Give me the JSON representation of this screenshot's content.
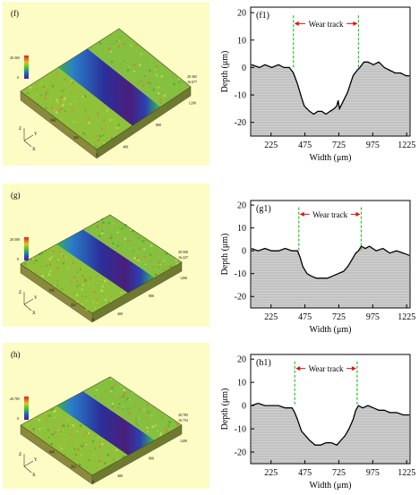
{
  "panels": [
    {
      "label": "(f)",
      "colors": {
        "bg": "#fdfcc4"
      },
      "axis_text": {
        "top_scale": [
          "20.365",
          "0"
        ],
        "right_scale": [
          "20.365",
          "16.677"
        ],
        "x_ticks": [
          "1200",
          "800",
          "400"
        ],
        "y_ticks": [
          "642",
          "321",
          "0"
        ],
        "z_labels": [
          "Z",
          "Y",
          "X"
        ]
      }
    },
    {
      "label": "(g)",
      "colors": {
        "bg": "#fdfcc4"
      },
      "axis_text": {
        "top_scale": [
          "20.500",
          "0"
        ],
        "right_scale": [
          "20.500",
          "16.227"
        ],
        "x_ticks": [
          "1200",
          "800",
          "400"
        ],
        "y_ticks": [
          "642",
          "321",
          "0"
        ],
        "z_labels": [
          "Z",
          "Y",
          "X"
        ]
      }
    },
    {
      "label": "(h)",
      "colors": {
        "bg": "#fdfcc4"
      },
      "axis_text": {
        "top_scale": [
          "20.785",
          "0"
        ],
        "right_scale": [
          "20.785",
          "16.753"
        ],
        "x_ticks": [
          "1200",
          "800",
          "400"
        ],
        "y_ticks": [
          "642",
          "321",
          "0"
        ],
        "z_labels": [
          "Z",
          "Y",
          "X"
        ]
      }
    }
  ],
  "chart_data": [
    {
      "type": "area",
      "panel_label": "(f1)",
      "annotation": "Wear track",
      "xlabel": "Width (μm)",
      "ylabel": "Depth (μm)",
      "xlim": [
        75,
        1250
      ],
      "ylim": [
        -25,
        22
      ],
      "xticks": [
        225,
        475,
        725,
        975,
        1225
      ],
      "yticks": [
        20,
        10,
        0,
        -10,
        -20
      ],
      "track_bounds": [
        390,
        870
      ],
      "x": [
        80,
        140,
        180,
        230,
        280,
        320,
        360,
        390,
        420,
        450,
        470,
        490,
        510,
        540,
        570,
        600,
        630,
        660,
        690,
        710,
        720,
        730,
        760,
        790,
        810,
        830,
        860,
        880,
        910,
        940,
        980,
        1020,
        1060,
        1100,
        1140,
        1180,
        1220,
        1245
      ],
      "y": [
        1,
        0,
        1,
        0,
        1,
        0,
        0,
        -2,
        -6,
        -11,
        -14,
        -15,
        -16,
        -17,
        -16,
        -16,
        -17,
        -16,
        -15,
        -14,
        -12,
        -15,
        -12,
        -9,
        -6,
        -3,
        -1,
        0,
        2,
        2,
        1,
        2,
        0,
        -1,
        -2,
        -2,
        -3,
        -3
      ]
    },
    {
      "type": "area",
      "panel_label": "(g1)",
      "annotation": "Wear track",
      "xlabel": "Width (μm)",
      "ylabel": "Depth (μm)",
      "xlim": [
        75,
        1250
      ],
      "ylim": [
        -25,
        22
      ],
      "xticks": [
        225,
        475,
        725,
        975,
        1225
      ],
      "yticks": [
        20,
        10,
        0,
        -10,
        -20
      ],
      "track_bounds": [
        430,
        890
      ],
      "x": [
        80,
        130,
        180,
        230,
        280,
        330,
        380,
        420,
        440,
        460,
        490,
        520,
        560,
        600,
        640,
        680,
        720,
        760,
        790,
        820,
        850,
        870,
        890,
        920,
        950,
        1000,
        1050,
        1100,
        1150,
        1200,
        1245
      ],
      "y": [
        1,
        0,
        1,
        0,
        0,
        1,
        0,
        0,
        -3,
        -7,
        -10,
        -11,
        -12,
        -12,
        -12,
        -11,
        -10,
        -9,
        -7,
        -4,
        -1,
        0,
        2,
        1,
        2,
        0,
        1,
        -1,
        0,
        -1,
        -2
      ]
    },
    {
      "type": "area",
      "panel_label": "(h1)",
      "annotation": "Wear track",
      "xlabel": "Width (μm)",
      "ylabel": "Depth (μm)",
      "xlim": [
        75,
        1250
      ],
      "ylim": [
        -25,
        22
      ],
      "xticks": [
        225,
        475,
        725,
        975,
        1225
      ],
      "yticks": [
        20,
        10,
        0,
        -10,
        -20
      ],
      "track_bounds": [
        400,
        860
      ],
      "x": [
        80,
        130,
        180,
        230,
        280,
        330,
        380,
        400,
        420,
        450,
        480,
        510,
        550,
        590,
        630,
        670,
        710,
        740,
        770,
        800,
        830,
        850,
        870,
        900,
        940,
        980,
        1020,
        1060,
        1100,
        1150,
        1200,
        1245
      ],
      "y": [
        0,
        1,
        0,
        0,
        0,
        -1,
        -1,
        -3,
        -6,
        -11,
        -13,
        -15,
        -17,
        -17,
        -16,
        -16,
        -17,
        -15,
        -13,
        -10,
        -6,
        -2,
        0,
        -1,
        0,
        -1,
        -2,
        -2,
        -3,
        -3,
        -4,
        -4
      ]
    }
  ]
}
